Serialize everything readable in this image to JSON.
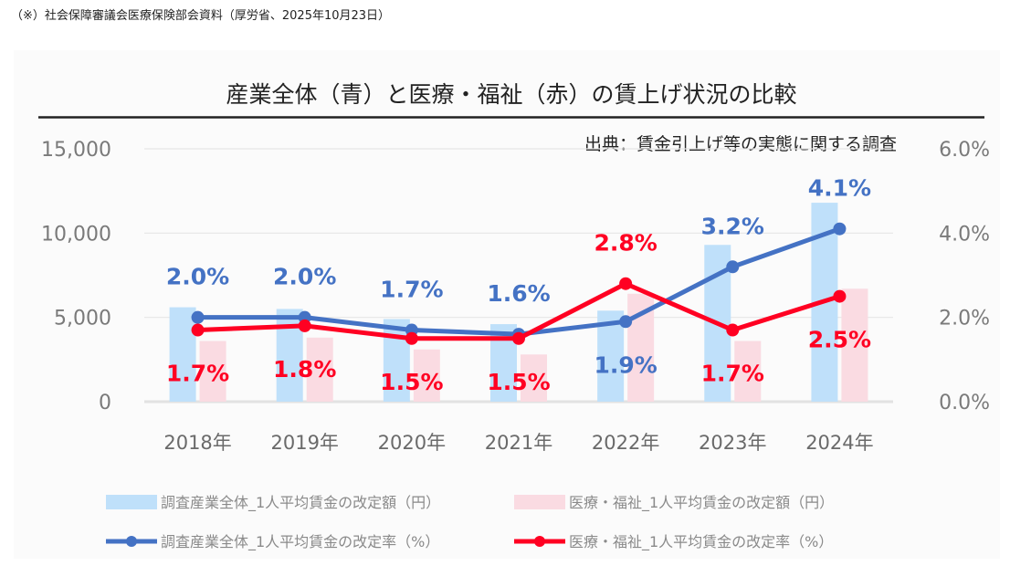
{
  "note": "（※）社会保障審議会医療保険部会資料（厚労省、2025年10月23日）",
  "chart_data": {
    "type": "bar+line",
    "title": "産業全体（青）と医療・福祉（赤）の賃上げ状況の比較",
    "source": "出典：賃金引上げ等の実態に関する調査",
    "categories": [
      "2018年",
      "2019年",
      "2020年",
      "2021年",
      "2022年",
      "2023年",
      "2024年"
    ],
    "left_axis": {
      "ylim": [
        0,
        15000
      ],
      "ticks": [
        "0",
        "5,000",
        "10,000",
        "15,000"
      ],
      "tick_values": [
        0,
        5000,
        10000,
        15000
      ]
    },
    "right_axis": {
      "ylim": [
        0,
        6.0
      ],
      "ticks": [
        "0.0%",
        "2.0%",
        "4.0%",
        "6.0%"
      ],
      "tick_values": [
        0,
        2,
        4,
        6
      ]
    },
    "grid": true,
    "legend_position": "bottom",
    "bar_series": [
      {
        "name": "調査産業全体_1人平均賃金の改定額（円）",
        "color": "#bfe0fa",
        "values": [
          5600,
          5500,
          4900,
          4600,
          5400,
          9300,
          11800
        ]
      },
      {
        "name": "医療・福祉_1人平均賃金の改定額（円）",
        "color": "#fadbe2",
        "values": [
          3600,
          3800,
          3100,
          2800,
          6400,
          3600,
          6700
        ]
      }
    ],
    "line_series": [
      {
        "name": "調査産業全体_1人平均賃金の改定率（%）",
        "color": "#4472c4",
        "values": [
          2.0,
          2.0,
          1.7,
          1.6,
          1.9,
          3.2,
          4.1
        ],
        "labels": [
          "2.0%",
          "2.0%",
          "1.7%",
          "1.6%",
          "1.9%",
          "3.2%",
          "4.1%"
        ],
        "label_pos": [
          "above",
          "above",
          "above",
          "above",
          "below",
          "above",
          "above"
        ]
      },
      {
        "name": "医療・福祉_1人平均賃金の改定率（%）",
        "color": "#ff0022",
        "values": [
          1.7,
          1.8,
          1.5,
          1.5,
          2.8,
          1.7,
          2.5
        ],
        "labels": [
          "1.7%",
          "1.8%",
          "1.5%",
          "1.5%",
          "2.8%",
          "1.7%",
          "2.5%"
        ],
        "label_pos": [
          "below",
          "below",
          "below",
          "below",
          "above",
          "below",
          "below"
        ]
      }
    ]
  }
}
